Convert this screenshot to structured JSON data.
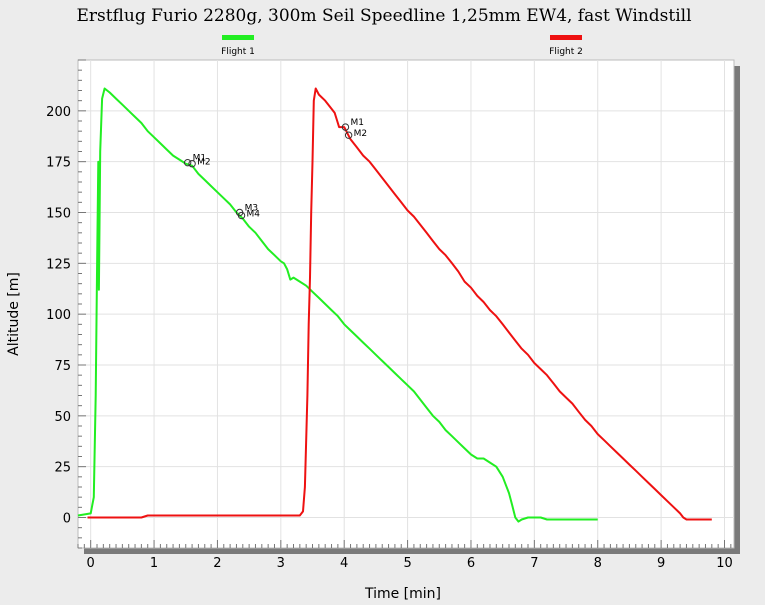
{
  "chart_data": {
    "type": "line",
    "title": "Erstflug Furio 2280g, 300m Seil Speedline 1,25mm EW4, fast Windstill",
    "xlabel": "Time [min]",
    "ylabel": "Altitude [m]",
    "xlim": [
      -0.2,
      10.15
    ],
    "ylim": [
      -15,
      225
    ],
    "xticks": [
      0,
      1,
      2,
      3,
      4,
      5,
      6,
      7,
      8,
      9,
      10
    ],
    "yticks": [
      0,
      25,
      50,
      75,
      100,
      125,
      150,
      175,
      200
    ],
    "legend_placement": "top",
    "series": [
      {
        "name": "Flight 1",
        "color": "#22ee22",
        "points": [
          [
            -0.2,
            1
          ],
          [
            0.0,
            2
          ],
          [
            0.05,
            10
          ],
          [
            0.08,
            60
          ],
          [
            0.1,
            120
          ],
          [
            0.12,
            175
          ],
          [
            0.13,
            112
          ],
          [
            0.15,
            180
          ],
          [
            0.18,
            206
          ],
          [
            0.22,
            211
          ],
          [
            0.3,
            209
          ],
          [
            0.4,
            206
          ],
          [
            0.5,
            203
          ],
          [
            0.6,
            200
          ],
          [
            0.7,
            197
          ],
          [
            0.8,
            194
          ],
          [
            0.9,
            190
          ],
          [
            1.0,
            187
          ],
          [
            1.1,
            184
          ],
          [
            1.2,
            181
          ],
          [
            1.3,
            178
          ],
          [
            1.4,
            176
          ],
          [
            1.5,
            174
          ],
          [
            1.6,
            173
          ],
          [
            1.7,
            169
          ],
          [
            1.8,
            166
          ],
          [
            1.9,
            163
          ],
          [
            2.0,
            160
          ],
          [
            2.1,
            157
          ],
          [
            2.2,
            154
          ],
          [
            2.3,
            150
          ],
          [
            2.4,
            147
          ],
          [
            2.5,
            143
          ],
          [
            2.6,
            140
          ],
          [
            2.7,
            136
          ],
          [
            2.8,
            132
          ],
          [
            2.9,
            129
          ],
          [
            3.0,
            126
          ],
          [
            3.05,
            125
          ],
          [
            3.1,
            122
          ],
          [
            3.15,
            117
          ],
          [
            3.2,
            118
          ],
          [
            3.3,
            116
          ],
          [
            3.4,
            114
          ],
          [
            3.5,
            111
          ],
          [
            3.6,
            108
          ],
          [
            3.7,
            105
          ],
          [
            3.8,
            102
          ],
          [
            3.9,
            99
          ],
          [
            4.0,
            95
          ],
          [
            4.1,
            92
          ],
          [
            4.2,
            89
          ],
          [
            4.3,
            86
          ],
          [
            4.4,
            83
          ],
          [
            4.5,
            80
          ],
          [
            4.6,
            77
          ],
          [
            4.7,
            74
          ],
          [
            4.8,
            71
          ],
          [
            4.9,
            68
          ],
          [
            5.0,
            65
          ],
          [
            5.1,
            62
          ],
          [
            5.2,
            58
          ],
          [
            5.3,
            54
          ],
          [
            5.4,
            50
          ],
          [
            5.5,
            47
          ],
          [
            5.6,
            43
          ],
          [
            5.7,
            40
          ],
          [
            5.8,
            37
          ],
          [
            5.9,
            34
          ],
          [
            6.0,
            31
          ],
          [
            6.1,
            29
          ],
          [
            6.2,
            29
          ],
          [
            6.3,
            27
          ],
          [
            6.4,
            25
          ],
          [
            6.5,
            20
          ],
          [
            6.6,
            12
          ],
          [
            6.65,
            6
          ],
          [
            6.7,
            0
          ],
          [
            6.75,
            -2
          ],
          [
            6.8,
            -1
          ],
          [
            6.9,
            0
          ],
          [
            7.0,
            0
          ],
          [
            7.1,
            0
          ],
          [
            7.2,
            -1
          ],
          [
            7.4,
            -1
          ],
          [
            7.6,
            -1
          ],
          [
            7.8,
            -1
          ],
          [
            8.0,
            -1
          ]
        ]
      },
      {
        "name": "Flight 2",
        "color": "#ee1111",
        "points": [
          [
            -0.05,
            0
          ],
          [
            0.5,
            0
          ],
          [
            0.8,
            0
          ],
          [
            0.9,
            1
          ],
          [
            1.2,
            1
          ],
          [
            1.6,
            1
          ],
          [
            1.9,
            1
          ],
          [
            2.2,
            1
          ],
          [
            2.5,
            1
          ],
          [
            2.8,
            1
          ],
          [
            3.1,
            1
          ],
          [
            3.3,
            1
          ],
          [
            3.35,
            3
          ],
          [
            3.38,
            15
          ],
          [
            3.42,
            60
          ],
          [
            3.44,
            95
          ],
          [
            3.46,
            118
          ],
          [
            3.48,
            150
          ],
          [
            3.5,
            175
          ],
          [
            3.52,
            205
          ],
          [
            3.55,
            211
          ],
          [
            3.6,
            208
          ],
          [
            3.7,
            205
          ],
          [
            3.8,
            201
          ],
          [
            3.85,
            199
          ],
          [
            3.88,
            196
          ],
          [
            3.92,
            192
          ],
          [
            4.0,
            192
          ],
          [
            4.1,
            186
          ],
          [
            4.2,
            182
          ],
          [
            4.3,
            178
          ],
          [
            4.4,
            175
          ],
          [
            4.5,
            171
          ],
          [
            4.6,
            167
          ],
          [
            4.7,
            163
          ],
          [
            4.8,
            159
          ],
          [
            4.9,
            155
          ],
          [
            5.0,
            151
          ],
          [
            5.1,
            148
          ],
          [
            5.2,
            144
          ],
          [
            5.3,
            140
          ],
          [
            5.4,
            136
          ],
          [
            5.5,
            132
          ],
          [
            5.6,
            129
          ],
          [
            5.7,
            125
          ],
          [
            5.8,
            121
          ],
          [
            5.9,
            116
          ],
          [
            6.0,
            113
          ],
          [
            6.1,
            109
          ],
          [
            6.2,
            106
          ],
          [
            6.3,
            102
          ],
          [
            6.4,
            99
          ],
          [
            6.5,
            95
          ],
          [
            6.6,
            91
          ],
          [
            6.7,
            87
          ],
          [
            6.8,
            83
          ],
          [
            6.9,
            80
          ],
          [
            7.0,
            76
          ],
          [
            7.1,
            73
          ],
          [
            7.2,
            70
          ],
          [
            7.3,
            66
          ],
          [
            7.4,
            62
          ],
          [
            7.5,
            59
          ],
          [
            7.6,
            56
          ],
          [
            7.7,
            52
          ],
          [
            7.8,
            48
          ],
          [
            7.9,
            45
          ],
          [
            8.0,
            41
          ],
          [
            8.1,
            38
          ],
          [
            8.2,
            35
          ],
          [
            8.3,
            32
          ],
          [
            8.4,
            29
          ],
          [
            8.5,
            26
          ],
          [
            8.6,
            23
          ],
          [
            8.7,
            20
          ],
          [
            8.8,
            17
          ],
          [
            8.9,
            14
          ],
          [
            9.0,
            11
          ],
          [
            9.1,
            8
          ],
          [
            9.2,
            5
          ],
          [
            9.3,
            2
          ],
          [
            9.35,
            0
          ],
          [
            9.4,
            -1
          ],
          [
            9.5,
            -1
          ],
          [
            9.6,
            -1
          ],
          [
            9.7,
            -1
          ],
          [
            9.8,
            -1
          ]
        ]
      }
    ],
    "markers": [
      {
        "label": "M1",
        "series": "Flight 1",
        "x": 1.53,
        "y": 174.5
      },
      {
        "label": "M2",
        "series": "Flight 1",
        "x": 1.6,
        "y": 174
      },
      {
        "label": "M3",
        "series": "Flight 1",
        "x": 2.35,
        "y": 150
      },
      {
        "label": "M4",
        "series": "Flight 1",
        "x": 2.38,
        "y": 148.5
      },
      {
        "label": "M1",
        "series": "Flight 2",
        "x": 4.02,
        "y": 192
      },
      {
        "label": "M2",
        "series": "Flight 2",
        "x": 4.07,
        "y": 188
      }
    ]
  }
}
